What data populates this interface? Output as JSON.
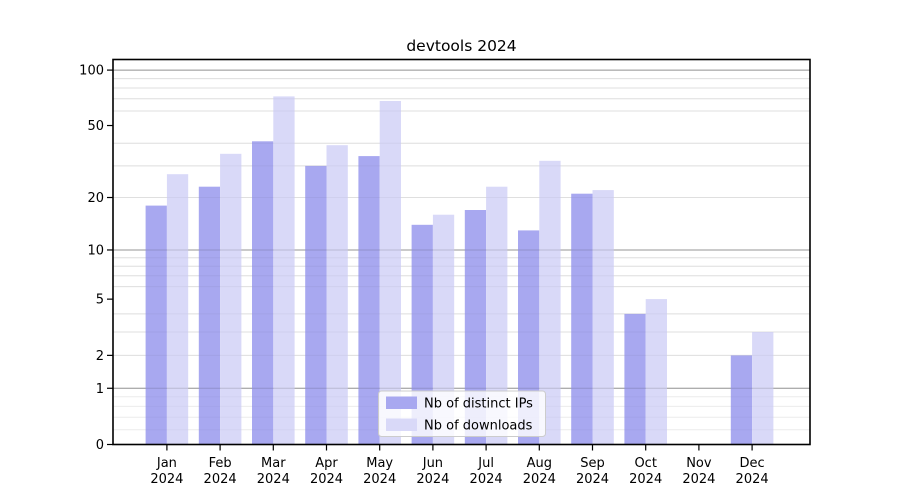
{
  "title": "devtools 2024",
  "chart_data": {
    "type": "bar",
    "title": "devtools 2024",
    "categories": [
      "Jan 2024",
      "Feb 2024",
      "Mar 2024",
      "Apr 2024",
      "May 2024",
      "Jun 2024",
      "Jul 2024",
      "Aug 2024",
      "Sep 2024",
      "Oct 2024",
      "Nov 2024",
      "Dec 2024"
    ],
    "series": [
      {
        "name": "Nb of distinct IPs",
        "color": "#a8a8f0",
        "values": [
          18,
          23,
          41,
          30,
          34,
          14,
          17,
          13,
          21,
          4,
          0,
          2
        ]
      },
      {
        "name": "Nb of downloads",
        "color": "#d9d9f8",
        "values": [
          27,
          35,
          72,
          39,
          68,
          16,
          23,
          32,
          22,
          5,
          0,
          3
        ]
      }
    ],
    "xlabel": "",
    "ylabel": "",
    "yscale": "log1p",
    "ylim": [
      0,
      114
    ],
    "yticks": [
      0,
      1,
      2,
      5,
      10,
      20,
      50,
      100
    ],
    "major_grid_ticks": [
      1,
      10,
      100
    ],
    "minor_grid_ticks": [
      2,
      3,
      4,
      6,
      7,
      8,
      9,
      20,
      30,
      40,
      60,
      70,
      80,
      90
    ],
    "sub1_minor_grid_ticks": [
      0.2,
      0.4,
      0.6,
      0.8
    ],
    "grid": true,
    "legend_position": "lower center inside",
    "bar_group_width_ratio": 0.8
  },
  "colors": {
    "background": "#ffffff",
    "axis": "#000000",
    "grid_minor": "#e8e8e8",
    "grid_major": "#adadad",
    "grid_sub1": "#f2f2f2",
    "legend_border": "#cccccc",
    "legend_bg": "rgba(255,255,255,0.8)"
  }
}
